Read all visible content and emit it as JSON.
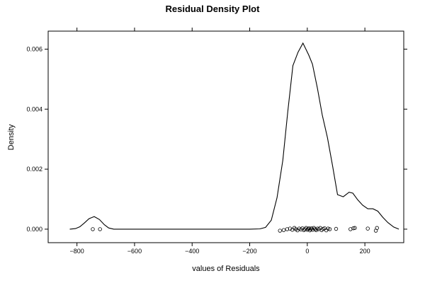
{
  "chart_data": {
    "type": "line",
    "title": "Residual Density Plot",
    "xlabel": "values of Residuals",
    "ylabel": "Density",
    "xlim": [
      -900,
      335
    ],
    "ylim": [
      -0.00045,
      0.0066
    ],
    "x_ticks": [
      {
        "value": -800,
        "label": "−800"
      },
      {
        "value": -600,
        "label": "−600"
      },
      {
        "value": -400,
        "label": "−400"
      },
      {
        "value": -200,
        "label": "−200"
      },
      {
        "value": 0,
        "label": "0"
      },
      {
        "value": 200,
        "label": "200"
      }
    ],
    "y_ticks": [
      {
        "value": 0,
        "label": "0.000"
      },
      {
        "value": 0.002,
        "label": "0.002"
      },
      {
        "value": 0.004,
        "label": "0.004"
      },
      {
        "value": 0.006,
        "label": "0.006"
      }
    ],
    "grid": false,
    "series": [
      {
        "kind": "density_line",
        "x": [
          -825,
          -805,
          -790,
          -775,
          -758,
          -740,
          -722,
          -705,
          -690,
          -672,
          -655,
          -637,
          -600,
          -500,
          -400,
          -300,
          -250,
          -200,
          -165,
          -145,
          -125,
          -105,
          -85,
          -68,
          -50,
          -32,
          -15,
          -5,
          5,
          18,
          35,
          52,
          70,
          88,
          105,
          125,
          145,
          158,
          175,
          192,
          210,
          228,
          245,
          262,
          280,
          300,
          318
        ],
        "y": [
          0.0,
          2e-05,
          8e-05,
          0.0002,
          0.00035,
          0.00042,
          0.00032,
          0.00015,
          4e-05,
          0.0,
          0.0,
          0.0,
          0.0,
          0.0,
          0.0,
          0.0,
          0.0,
          0.0,
          1e-05,
          6e-05,
          0.0003,
          0.00105,
          0.0023,
          0.0039,
          0.00545,
          0.0059,
          0.0062,
          0.006,
          0.0058,
          0.0055,
          0.0047,
          0.0038,
          0.00305,
          0.0021,
          0.00115,
          0.00108,
          0.00123,
          0.0012,
          0.00098,
          0.0008,
          0.00068,
          0.00068,
          0.0006,
          0.0004,
          0.00022,
          7e-05,
          0.0
        ]
      },
      {
        "kind": "rug_points",
        "x": [
          -745,
          -720,
          -95,
          -82,
          -70,
          -60,
          -52,
          -45,
          -40,
          -34,
          -28,
          -22,
          -17,
          -12,
          -8,
          -4,
          0,
          3,
          6,
          9,
          12,
          15,
          19,
          23,
          27,
          31,
          35,
          40,
          45,
          50,
          55,
          60,
          66,
          72,
          78,
          100,
          150,
          160,
          165,
          210,
          238,
          242
        ],
        "y": [
          0.0,
          0.0,
          -5e-05,
          -3e-05,
          0.0,
          2e-05,
          -2e-05,
          4e-05,
          0.0,
          -4e-05,
          2e-05,
          -1e-05,
          3e-05,
          -3e-05,
          0.0,
          4e-05,
          -2e-05,
          1e-05,
          3e-05,
          -4e-05,
          0.0,
          3e-05,
          -2e-05,
          4e-05,
          0.0,
          -3e-05,
          2e-05,
          0.0,
          4e-05,
          -3e-05,
          1e-05,
          3e-05,
          -4e-05,
          2e-05,
          0.0,
          1e-05,
          0.0,
          3e-05,
          4e-05,
          2e-05,
          -5e-05,
          4e-05
        ]
      }
    ]
  }
}
